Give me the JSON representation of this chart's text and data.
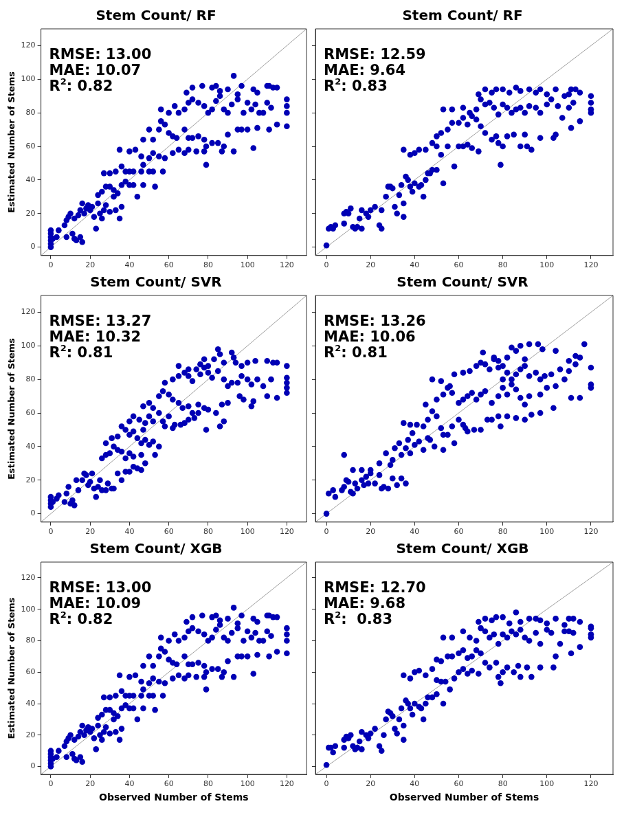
{
  "chart_data": [
    {
      "type": "scatter",
      "title": "Stem Count/ RF",
      "ylabel": "Estimated Number of Stems",
      "xlim": [
        -5,
        130
      ],
      "ylim": [
        -5,
        130
      ],
      "xticks": [
        0,
        20,
        40,
        60,
        80,
        100,
        120
      ],
      "yticks": [
        0,
        20,
        40,
        60,
        80,
        100,
        120
      ],
      "marker": "circle",
      "annotations": [
        "RMSE: 13.00",
        "MAE: 10.07",
        "R$^{2}$: 0.82"
      ],
      "series": [
        {
          "color": "#0000b4",
          "x": [
            0,
            0,
            0,
            0,
            0,
            0,
            1,
            3,
            4,
            8,
            11,
            12,
            13,
            15,
            16,
            23,
            7,
            8,
            9,
            10,
            12,
            14,
            15,
            16,
            17,
            18,
            19,
            20,
            21,
            22,
            24,
            25,
            26,
            27,
            28,
            30,
            32,
            33,
            35,
            36,
            24,
            26,
            28,
            30,
            32,
            34,
            36,
            38,
            40,
            42,
            44,
            47,
            53,
            27,
            30,
            33,
            36,
            38,
            40,
            42,
            46,
            50,
            52,
            57,
            35,
            40,
            43,
            46,
            47,
            50,
            52,
            55,
            58,
            62,
            65,
            68,
            70,
            74,
            78,
            79,
            87,
            93,
            103,
            47,
            50,
            52,
            55,
            56,
            58,
            60,
            62,
            64,
            68,
            70,
            72,
            75,
            78,
            79,
            82,
            85,
            88,
            90,
            95,
            97,
            100,
            105,
            111,
            115,
            120,
            56,
            60,
            63,
            65,
            68,
            70,
            72,
            75,
            78,
            80,
            82,
            84,
            86,
            88,
            90,
            92,
            95,
            98,
            100,
            102,
            104,
            106,
            108,
            110,
            112,
            120,
            120,
            120,
            69,
            72,
            77,
            82,
            84,
            86,
            90,
            93,
            95,
            97,
            103,
            105,
            110,
            113,
            115,
            111
          ],
          "values": [
            0,
            2,
            4,
            6,
            8,
            10,
            5,
            6,
            10,
            6,
            8,
            5,
            4,
            6,
            3,
            11,
            13,
            16,
            18,
            20,
            17,
            19,
            22,
            26,
            20,
            23,
            25,
            22,
            24,
            18,
            26,
            20,
            17,
            22,
            25,
            21,
            30,
            22,
            17,
            24,
            31,
            33,
            36,
            36,
            34,
            32,
            37,
            39,
            37,
            37,
            30,
            37,
            36,
            44,
            44,
            45,
            48,
            45,
            45,
            45,
            45,
            45,
            45,
            45,
            58,
            57,
            58,
            54,
            49,
            53,
            56,
            54,
            53,
            56,
            58,
            56,
            58,
            57,
            57,
            49,
            57,
            57,
            59,
            64,
            70,
            64,
            70,
            75,
            73,
            68,
            66,
            65,
            70,
            65,
            65,
            66,
            64,
            60,
            62,
            62,
            60,
            67,
            70,
            70,
            70,
            71,
            70,
            73,
            72,
            82,
            80,
            84,
            80,
            82,
            86,
            88,
            86,
            84,
            80,
            82,
            87,
            90,
            82,
            80,
            85,
            88,
            80,
            86,
            82,
            85,
            80,
            80,
            86,
            83,
            84,
            88,
            80,
            92,
            95,
            96,
            95,
            96,
            93,
            94,
            102,
            91,
            96,
            94,
            92,
            96,
            95,
            95,
            96
          ]
        },
        {
          "type": "line",
          "color": "#a0a0a0",
          "x": [
            -5,
            130
          ],
          "values": [
            -5,
            130
          ],
          "marker": "none"
        }
      ]
    },
    {
      "type": "scatter",
      "title": "Stem Count/ RF",
      "xlim": [
        -5,
        130
      ],
      "ylim": [
        -5,
        130
      ],
      "xticks": [
        0,
        20,
        40,
        60,
        80,
        100,
        120
      ],
      "yticks": [
        {
          "value": 0,
          "label": null
        },
        {
          "value": 20,
          "label": null
        },
        {
          "value": 40,
          "label": null
        },
        {
          "value": 60,
          "label": null
        },
        {
          "value": 80,
          "label": null
        },
        {
          "value": 100,
          "label": null
        },
        {
          "value": 120,
          "label": null
        }
      ],
      "tick_labels": "x",
      "marker": "circle",
      "annotations": [
        "RMSE: 12.59",
        "MAE: 9.64",
        "R$^{2}$: 0.83"
      ],
      "series": [
        {
          "color": "#0000b4",
          "x": [
            0,
            1,
            2,
            3,
            4,
            8,
            8,
            9,
            10,
            11,
            12,
            13,
            14,
            15,
            16,
            16,
            18,
            19,
            20,
            22,
            24,
            25,
            25,
            27,
            28,
            29,
            30,
            31,
            32,
            33,
            34,
            35,
            35,
            36,
            37,
            38,
            39,
            40,
            42,
            43,
            44,
            45,
            46,
            47,
            48,
            50,
            53,
            35,
            38,
            40,
            42,
            45,
            48,
            50,
            52,
            55,
            58,
            60,
            62,
            64,
            66,
            69,
            50,
            52,
            55,
            57,
            60,
            62,
            64,
            66,
            68,
            70,
            72,
            75,
            77,
            78,
            79,
            80,
            82,
            85,
            88,
            90,
            91,
            93,
            97,
            103,
            104,
            111,
            115,
            53,
            57,
            62,
            65,
            68,
            70,
            72,
            74,
            76,
            78,
            80,
            82,
            84,
            86,
            88,
            90,
            92,
            95,
            97,
            100,
            102,
            105,
            107,
            110,
            112,
            120,
            120,
            120,
            120,
            69,
            72,
            75,
            77,
            80,
            83,
            86,
            88,
            92,
            95,
            97,
            100,
            104,
            108,
            110,
            111,
            113,
            115
          ],
          "values": [
            1,
            11,
            12,
            11,
            13,
            14,
            20,
            21,
            20,
            23,
            12,
            11,
            12,
            17,
            11,
            22,
            20,
            18,
            22,
            24,
            13,
            11,
            22,
            30,
            36,
            36,
            35,
            24,
            20,
            31,
            37,
            26,
            18,
            42,
            40,
            36,
            33,
            38,
            36,
            37,
            30,
            40,
            44,
            44,
            46,
            46,
            38,
            58,
            55,
            56,
            58,
            58,
            62,
            60,
            55,
            60,
            48,
            60,
            60,
            61,
            59,
            57,
            66,
            68,
            70,
            74,
            74,
            77,
            73,
            78,
            76,
            72,
            68,
            64,
            66,
            62,
            49,
            60,
            66,
            67,
            60,
            67,
            60,
            58,
            65,
            65,
            67,
            71,
            75,
            82,
            82,
            83,
            80,
            82,
            88,
            85,
            86,
            83,
            79,
            85,
            83,
            80,
            82,
            83,
            80,
            84,
            83,
            80,
            85,
            88,
            84,
            77,
            83,
            86,
            80,
            82,
            86,
            90,
            91,
            94,
            92,
            94,
            94,
            92,
            95,
            93,
            94,
            92,
            94,
            91,
            94,
            90,
            91,
            94,
            94,
            92
          ]
        },
        {
          "type": "line",
          "color": "#a0a0a0",
          "x": [
            -5,
            130
          ],
          "values": [
            -5,
            130
          ],
          "marker": "none"
        }
      ]
    },
    {
      "type": "scatter",
      "title": "Stem Count/ SVR",
      "ylabel": "Estimated Number of Stems",
      "xlim": [
        -5,
        130
      ],
      "ylim": [
        -5,
        130
      ],
      "xticks": [
        0,
        20,
        40,
        60,
        80,
        100,
        120
      ],
      "yticks": [
        0,
        20,
        40,
        60,
        80,
        100,
        120
      ],
      "marker": "circle",
      "annotations": [
        "RMSE: 13.27",
        "MAE: 10.32",
        "R$^{2}$: 0.81"
      ],
      "series": [
        {
          "color": "#0000b4",
          "x": [
            0,
            0,
            0,
            0,
            1,
            3,
            4,
            7,
            8,
            9,
            10,
            11,
            12,
            13,
            14,
            16,
            17,
            18,
            19,
            20,
            21,
            22,
            23,
            24,
            25,
            26,
            28,
            29,
            31,
            32,
            34,
            36,
            38,
            40,
            42,
            44,
            46,
            48,
            26,
            28,
            30,
            32,
            34,
            36,
            38,
            40,
            42,
            46,
            53,
            28,
            31,
            34,
            36,
            38,
            40,
            42,
            44,
            46,
            48,
            50,
            52,
            55,
            40,
            42,
            45,
            47,
            48,
            50,
            52,
            55,
            57,
            58,
            60,
            62,
            63,
            66,
            68,
            70,
            73,
            75,
            79,
            86,
            88,
            47,
            50,
            52,
            55,
            57,
            60,
            62,
            65,
            67,
            70,
            72,
            75,
            78,
            80,
            84,
            87,
            90,
            96,
            98,
            102,
            103,
            110,
            115,
            120,
            120,
            58,
            62,
            65,
            68,
            70,
            72,
            74,
            76,
            78,
            80,
            82,
            85,
            88,
            90,
            92,
            95,
            97,
            100,
            102,
            105,
            108,
            112,
            120,
            120,
            65,
            70,
            76,
            78,
            80,
            83,
            86,
            88,
            92,
            94,
            97,
            100,
            104,
            110,
            113,
            115,
            120,
            93,
            85
          ],
          "values": [
            4,
            6,
            8,
            10,
            7,
            9,
            11,
            7,
            12,
            16,
            6,
            8,
            5,
            20,
            14,
            20,
            24,
            23,
            17,
            19,
            24,
            15,
            10,
            16,
            20,
            14,
            14,
            18,
            15,
            15,
            24,
            20,
            25,
            25,
            28,
            27,
            26,
            30,
            33,
            35,
            36,
            40,
            38,
            37,
            33,
            36,
            34,
            35,
            35,
            42,
            45,
            46,
            52,
            50,
            47,
            49,
            45,
            42,
            44,
            41,
            43,
            40,
            55,
            58,
            56,
            50,
            54,
            58,
            55,
            60,
            55,
            52,
            58,
            51,
            53,
            53,
            54,
            56,
            57,
            60,
            50,
            52,
            55,
            64,
            66,
            63,
            70,
            73,
            71,
            68,
            66,
            63,
            64,
            60,
            65,
            63,
            62,
            60,
            65,
            66,
            70,
            68,
            64,
            67,
            70,
            69,
            72,
            75,
            78,
            80,
            82,
            84,
            82,
            79,
            86,
            83,
            87,
            84,
            81,
            85,
            80,
            76,
            78,
            78,
            82,
            80,
            77,
            80,
            76,
            80,
            78,
            81,
            88,
            86,
            89,
            92,
            88,
            92,
            95,
            90,
            96,
            90,
            88,
            90,
            91,
            91,
            90,
            90,
            88,
            93,
            98
          ]
        },
        {
          "type": "line",
          "color": "#a0a0a0",
          "x": [
            -5,
            130
          ],
          "values": [
            -5,
            130
          ],
          "marker": "none"
        }
      ]
    },
    {
      "type": "scatter",
      "title": "Stem Count/ SVR",
      "xlim": [
        -5,
        130
      ],
      "ylim": [
        -5,
        130
      ],
      "xticks": [
        0,
        20,
        40,
        60,
        80,
        100,
        120
      ],
      "yticks": [
        {
          "value": 0,
          "label": null
        },
        {
          "value": 20,
          "label": null
        },
        {
          "value": 40,
          "label": null
        },
        {
          "value": 60,
          "label": null
        },
        {
          "value": 80,
          "label": null
        },
        {
          "value": 100,
          "label": null
        },
        {
          "value": 120,
          "label": null
        }
      ],
      "tick_labels": "x",
      "marker": "circle",
      "annotations": [
        "RMSE: 13.26",
        "MAE: 10.06",
        "R$^{2}$: 0.81"
      ],
      "series": [
        {
          "color": "#0000b4",
          "x": [
            0,
            1,
            3,
            4,
            7,
            8,
            9,
            10,
            11,
            12,
            13,
            14,
            16,
            17,
            18,
            19,
            20,
            22,
            24,
            25,
            26,
            28,
            30,
            32,
            34,
            36,
            8,
            12,
            16,
            20,
            24,
            27,
            29,
            30,
            31,
            33,
            34,
            36,
            37,
            38,
            39,
            40,
            42,
            44,
            46,
            47,
            49,
            53,
            35,
            38,
            41,
            44,
            46,
            48,
            50,
            52,
            53,
            55,
            57,
            58,
            60,
            62,
            63,
            64,
            67,
            70,
            73,
            75,
            78,
            79,
            82,
            86,
            90,
            93,
            97,
            103,
            45,
            50,
            53,
            55,
            57,
            60,
            62,
            64,
            66,
            68,
            70,
            72,
            75,
            78,
            80,
            82,
            84,
            86,
            88,
            90,
            92,
            97,
            100,
            104,
            108,
            111,
            115,
            120,
            120,
            48,
            52,
            56,
            58,
            62,
            65,
            68,
            70,
            72,
            74,
            76,
            78,
            80,
            82,
            84,
            86,
            88,
            90,
            92,
            95,
            97,
            99,
            102,
            106,
            110,
            113,
            120,
            71,
            76,
            78,
            80,
            82,
            84,
            86,
            88,
            90,
            92,
            96,
            98,
            104,
            110,
            115,
            117,
            113
          ],
          "values": [
            0,
            12,
            14,
            10,
            14,
            16,
            20,
            19,
            13,
            12,
            18,
            15,
            20,
            17,
            22,
            18,
            24,
            18,
            23,
            15,
            16,
            15,
            21,
            17,
            21,
            18,
            35,
            26,
            26,
            26,
            30,
            36,
            29,
            32,
            39,
            42,
            35,
            39,
            44,
            36,
            48,
            41,
            43,
            38,
            45,
            44,
            40,
            38,
            54,
            53,
            53,
            52,
            56,
            61,
            58,
            51,
            47,
            47,
            52,
            42,
            56,
            53,
            51,
            49,
            50,
            50,
            56,
            56,
            58,
            52,
            58,
            57,
            56,
            59,
            60,
            63,
            65,
            68,
            71,
            75,
            72,
            66,
            68,
            70,
            72,
            68,
            71,
            73,
            66,
            70,
            75,
            71,
            77,
            74,
            69,
            65,
            70,
            71,
            75,
            76,
            80,
            69,
            69,
            75,
            77,
            80,
            79,
            76,
            83,
            84,
            85,
            88,
            90,
            89,
            86,
            92,
            87,
            80,
            84,
            80,
            83,
            86,
            88,
            82,
            84,
            80,
            82,
            83,
            86,
            85,
            89,
            87,
            96,
            93,
            91,
            88,
            93,
            99,
            97,
            100,
            92,
            101,
            101,
            98,
            97,
            91,
            93,
            101,
            94
          ]
        },
        {
          "type": "line",
          "color": "#a0a0a0",
          "x": [
            -5,
            130
          ],
          "values": [
            -5,
            130
          ],
          "marker": "none"
        }
      ]
    },
    {
      "type": "scatter",
      "title": "Stem Count/ XGB",
      "xlabel": "Observed Number of Stems",
      "ylabel": "Estimated Number of Stems",
      "xlim": [
        -5,
        130
      ],
      "ylim": [
        -5,
        130
      ],
      "xticks": [
        0,
        20,
        40,
        60,
        80,
        100,
        120
      ],
      "yticks": [
        0,
        20,
        40,
        60,
        80,
        100,
        120
      ],
      "marker": "circle",
      "annotations": [
        "RMSE: 13.00",
        "MAE: 10.09",
        "R$^{2}$: 0.82"
      ],
      "series": [
        {
          "color": "#0000b4",
          "x": [
            0,
            0,
            0,
            0,
            0,
            0,
            1,
            3,
            4,
            8,
            11,
            12,
            13,
            15,
            16,
            23,
            7,
            8,
            9,
            10,
            12,
            14,
            15,
            16,
            17,
            18,
            19,
            20,
            21,
            22,
            24,
            25,
            26,
            27,
            28,
            30,
            32,
            33,
            35,
            36,
            24,
            26,
            28,
            30,
            32,
            34,
            36,
            38,
            40,
            42,
            44,
            47,
            53,
            27,
            30,
            33,
            36,
            38,
            40,
            42,
            46,
            50,
            52,
            57,
            35,
            40,
            43,
            46,
            47,
            50,
            52,
            55,
            58,
            62,
            65,
            68,
            70,
            74,
            78,
            79,
            87,
            93,
            103,
            47,
            50,
            52,
            55,
            56,
            58,
            60,
            62,
            64,
            68,
            70,
            72,
            75,
            78,
            79,
            82,
            85,
            88,
            90,
            95,
            97,
            100,
            105,
            111,
            115,
            120,
            56,
            60,
            63,
            65,
            68,
            70,
            72,
            75,
            78,
            80,
            82,
            84,
            86,
            88,
            90,
            92,
            95,
            98,
            100,
            102,
            104,
            106,
            108,
            110,
            112,
            120,
            120,
            120,
            69,
            72,
            77,
            82,
            84,
            86,
            90,
            93,
            95,
            97,
            103,
            105,
            110,
            113,
            115,
            111
          ],
          "values": [
            0,
            2,
            4,
            6,
            8,
            10,
            5,
            6,
            10,
            6,
            8,
            5,
            4,
            6,
            3,
            11,
            13,
            16,
            18,
            20,
            17,
            19,
            22,
            26,
            20,
            23,
            25,
            22,
            24,
            18,
            26,
            20,
            17,
            22,
            25,
            21,
            30,
            22,
            17,
            24,
            31,
            33,
            36,
            36,
            34,
            32,
            37,
            39,
            37,
            37,
            30,
            37,
            36,
            44,
            44,
            45,
            48,
            45,
            45,
            45,
            45,
            45,
            45,
            45,
            58,
            57,
            58,
            54,
            49,
            53,
            56,
            54,
            53,
            56,
            58,
            56,
            58,
            57,
            57,
            49,
            57,
            57,
            59,
            64,
            70,
            64,
            70,
            75,
            73,
            68,
            66,
            65,
            70,
            65,
            65,
            66,
            64,
            60,
            62,
            62,
            60,
            67,
            70,
            70,
            70,
            71,
            70,
            73,
            72,
            82,
            80,
            84,
            80,
            82,
            86,
            88,
            86,
            84,
            80,
            82,
            87,
            90,
            82,
            80,
            85,
            88,
            80,
            86,
            82,
            85,
            80,
            80,
            86,
            83,
            84,
            88,
            80,
            92,
            95,
            96,
            95,
            96,
            93,
            94,
            101,
            91,
            96,
            94,
            92,
            96,
            95,
            95,
            96
          ]
        },
        {
          "type": "line",
          "color": "#a0a0a0",
          "x": [
            -5,
            130
          ],
          "values": [
            -5,
            130
          ],
          "marker": "none"
        }
      ]
    },
    {
      "type": "scatter",
      "title": "Stem Count/ XGB",
      "xlabel": "Observed Number of Stems",
      "xlim": [
        -5,
        130
      ],
      "ylim": [
        -5,
        130
      ],
      "xticks": [
        0,
        20,
        40,
        60,
        80,
        100,
        120
      ],
      "yticks": [
        {
          "value": 0,
          "label": null
        },
        {
          "value": 20,
          "label": null
        },
        {
          "value": 40,
          "label": null
        },
        {
          "value": 60,
          "label": null
        },
        {
          "value": 80,
          "label": null
        },
        {
          "value": 100,
          "label": null
        },
        {
          "value": 120,
          "label": null
        }
      ],
      "tick_labels": "x",
      "marker": "circle",
      "annotations": [
        "RMSE: 12.70",
        "MAE: 9.68",
        "R$^{2}$:  0.83"
      ],
      "series": [
        {
          "color": "#0000b4",
          "x": [
            0,
            1,
            2,
            3,
            4,
            8,
            8,
            9,
            10,
            11,
            12,
            13,
            14,
            15,
            16,
            16,
            18,
            19,
            20,
            22,
            24,
            25,
            26,
            27,
            28,
            29,
            30,
            31,
            32,
            33,
            34,
            35,
            35,
            36,
            37,
            38,
            39,
            40,
            42,
            43,
            44,
            45,
            46,
            48,
            50,
            53,
            35,
            38,
            40,
            42,
            45,
            48,
            50,
            52,
            54,
            56,
            58,
            60,
            62,
            64,
            66,
            69,
            50,
            52,
            55,
            57,
            60,
            62,
            64,
            66,
            68,
            70,
            72,
            74,
            77,
            78,
            79,
            80,
            82,
            85,
            87,
            88,
            91,
            93,
            97,
            103,
            104,
            111,
            115,
            53,
            57,
            62,
            65,
            68,
            70,
            72,
            74,
            76,
            78,
            80,
            82,
            84,
            86,
            88,
            90,
            92,
            95,
            97,
            100,
            102,
            106,
            108,
            110,
            112,
            120,
            120,
            120,
            120,
            69,
            72,
            75,
            77,
            80,
            83,
            86,
            88,
            92,
            95,
            97,
            100,
            104,
            108,
            110,
            112,
            115
          ],
          "values": [
            1,
            12,
            12,
            9,
            13,
            12,
            17,
            19,
            18,
            20,
            13,
            11,
            12,
            16,
            11,
            22,
            20,
            18,
            21,
            24,
            13,
            10,
            20,
            30,
            35,
            34,
            32,
            24,
            21,
            30,
            37,
            26,
            17,
            42,
            40,
            37,
            33,
            40,
            38,
            37,
            30,
            40,
            44,
            44,
            46,
            40,
            58,
            56,
            60,
            61,
            58,
            62,
            55,
            54,
            54,
            49,
            56,
            60,
            62,
            59,
            61,
            59,
            68,
            67,
            70,
            70,
            72,
            74,
            69,
            70,
            74,
            72,
            66,
            63,
            66,
            57,
            53,
            60,
            63,
            60,
            64,
            57,
            63,
            57,
            63,
            63,
            70,
            72,
            76,
            82,
            82,
            86,
            82,
            80,
            88,
            86,
            82,
            84,
            78,
            84,
            82,
            86,
            84,
            87,
            82,
            80,
            85,
            78,
            87,
            85,
            78,
            86,
            86,
            85,
            84,
            82,
            88,
            89,
            92,
            94,
            93,
            95,
            95,
            91,
            98,
            92,
            94,
            94,
            93,
            91,
            94,
            90,
            94,
            94,
            92
          ]
        },
        {
          "type": "line",
          "color": "#a0a0a0",
          "x": [
            -5,
            130
          ],
          "values": [
            -5,
            130
          ],
          "marker": "none"
        }
      ]
    }
  ]
}
